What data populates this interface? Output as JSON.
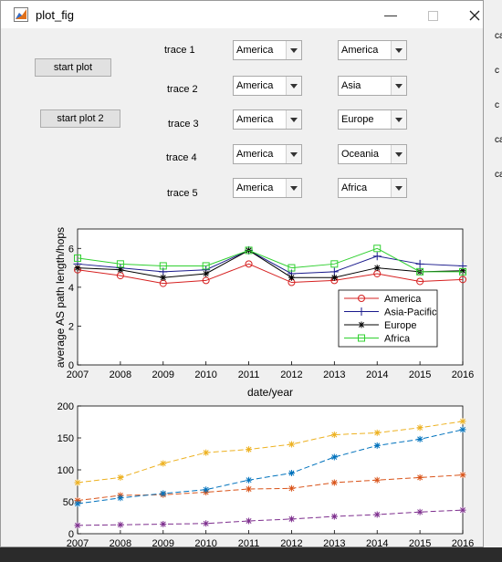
{
  "window": {
    "title": "plot_fig"
  },
  "buttons": {
    "start_plot": "start plot",
    "start_plot_2": "start plot 2"
  },
  "traces": [
    {
      "label": "trace 1",
      "left": "America",
      "right": "America"
    },
    {
      "label": "trace 2",
      "left": "America",
      "right": "Asia"
    },
    {
      "label": "trace 3",
      "left": "America",
      "right": "Europe"
    },
    {
      "label": "trace 4",
      "left": "America",
      "right": "Oceania"
    },
    {
      "label": "trace 5",
      "left": "America",
      "right": "Africa"
    }
  ],
  "chart_data": [
    {
      "type": "line",
      "x": [
        2007,
        2008,
        2009,
        2010,
        2011,
        2012,
        2013,
        2014,
        2015,
        2016
      ],
      "xlabel": "date/year",
      "ylabel": "average AS path length/hops",
      "xlim": [
        2007,
        2016
      ],
      "ylim": [
        0,
        7
      ],
      "yticks": [
        0,
        2,
        4,
        6
      ],
      "legend": "bottom-right",
      "series": [
        {
          "name": "America",
          "color": "#d62020",
          "marker": "circle",
          "values": [
            4.9,
            4.6,
            4.2,
            4.35,
            5.2,
            4.25,
            4.35,
            4.7,
            4.3,
            4.4
          ]
        },
        {
          "name": "Asia-Pacific",
          "color": "#1a1a8c",
          "marker": "plus",
          "values": [
            5.2,
            5.0,
            4.8,
            4.9,
            5.9,
            4.7,
            4.8,
            5.6,
            5.2,
            5.1
          ]
        },
        {
          "name": "Europe",
          "color": "#000000",
          "marker": "star",
          "values": [
            5.0,
            4.9,
            4.5,
            4.7,
            5.9,
            4.5,
            4.5,
            5.0,
            4.8,
            4.85
          ]
        },
        {
          "name": "Africa",
          "color": "#30d030",
          "marker": "square",
          "values": [
            5.5,
            5.2,
            5.1,
            5.1,
            5.9,
            5.0,
            5.2,
            6.0,
            4.8,
            4.8
          ]
        }
      ]
    },
    {
      "type": "line",
      "x": [
        2007,
        2008,
        2009,
        2010,
        2011,
        2012,
        2013,
        2014,
        2015,
        2016
      ],
      "xlim": [
        2007,
        2016
      ],
      "ylim": [
        0,
        200
      ],
      "yticks": [
        0,
        50,
        100,
        150,
        200
      ],
      "series": [
        {
          "color": "#edb120",
          "values": [
            80,
            88,
            110,
            127,
            132,
            140,
            155,
            158,
            166,
            176
          ]
        },
        {
          "color": "#d95319",
          "values": [
            52,
            60,
            61,
            65,
            70,
            71,
            80,
            84,
            88,
            92
          ]
        },
        {
          "color": "#0072bd",
          "values": [
            47,
            56,
            63,
            69,
            84,
            95,
            120,
            138,
            148,
            163
          ]
        },
        {
          "color": "#7e2f8e",
          "values": [
            13,
            14,
            15,
            16,
            20,
            23,
            27,
            30,
            34,
            37
          ]
        }
      ]
    }
  ],
  "background_fragments": [
    "ca",
    "c",
    "c",
    "ca",
    "ca"
  ]
}
